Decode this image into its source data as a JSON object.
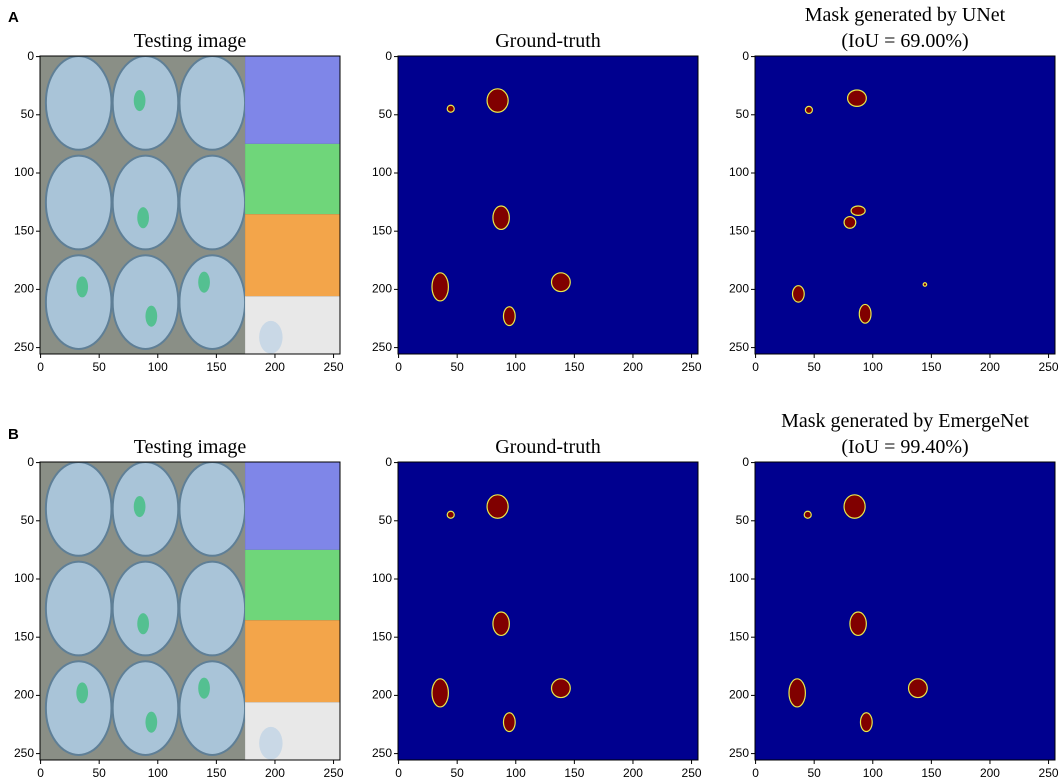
{
  "rows": [
    {
      "label": "A",
      "panels": [
        {
          "title": [
            "Testing image"
          ],
          "xlim": [
            -0.5,
            255.5
          ],
          "ylim": [
            -0.5,
            255.5
          ],
          "xticks": [
            0,
            50,
            100,
            150,
            200,
            250
          ],
          "yticks": [
            0,
            50,
            100,
            150,
            200,
            250
          ]
        },
        {
          "title": [
            "Ground-truth"
          ],
          "xlim": [
            -0.5,
            255.5
          ],
          "ylim": [
            -0.5,
            255.5
          ],
          "xticks": [
            0,
            50,
            100,
            150,
            200,
            250
          ],
          "yticks": [
            0,
            50,
            100,
            150,
            200,
            250
          ]
        },
        {
          "title": [
            "Mask generated by UNet",
            "(IoU = 69.00%)"
          ],
          "xlim": [
            -0.5,
            255.5
          ],
          "ylim": [
            -0.5,
            255.5
          ],
          "xticks": [
            0,
            50,
            100,
            150,
            200,
            250
          ],
          "yticks": [
            0,
            50,
            100,
            150,
            200,
            250
          ]
        }
      ]
    },
    {
      "label": "B",
      "panels": [
        {
          "title": [
            "Testing image"
          ],
          "xlim": [
            -0.5,
            255.5
          ],
          "ylim": [
            -0.5,
            255.5
          ],
          "xticks": [
            0,
            50,
            100,
            150,
            200,
            250
          ],
          "yticks": [
            0,
            50,
            100,
            150,
            200,
            250
          ]
        },
        {
          "title": [
            "Ground-truth"
          ],
          "xlim": [
            -0.5,
            255.5
          ],
          "ylim": [
            -0.5,
            255.5
          ],
          "xticks": [
            0,
            50,
            100,
            150,
            200,
            250
          ],
          "yticks": [
            0,
            50,
            100,
            150,
            200,
            250
          ]
        },
        {
          "title": [
            "Mask generated by EmergeNet",
            "(IoU = 99.40%)"
          ],
          "xlim": [
            -0.5,
            255.5
          ],
          "ylim": [
            -0.5,
            255.5
          ],
          "xticks": [
            0,
            50,
            100,
            150,
            200,
            250
          ],
          "yticks": [
            0,
            50,
            100,
            150,
            200,
            250
          ]
        }
      ]
    }
  ]
}
